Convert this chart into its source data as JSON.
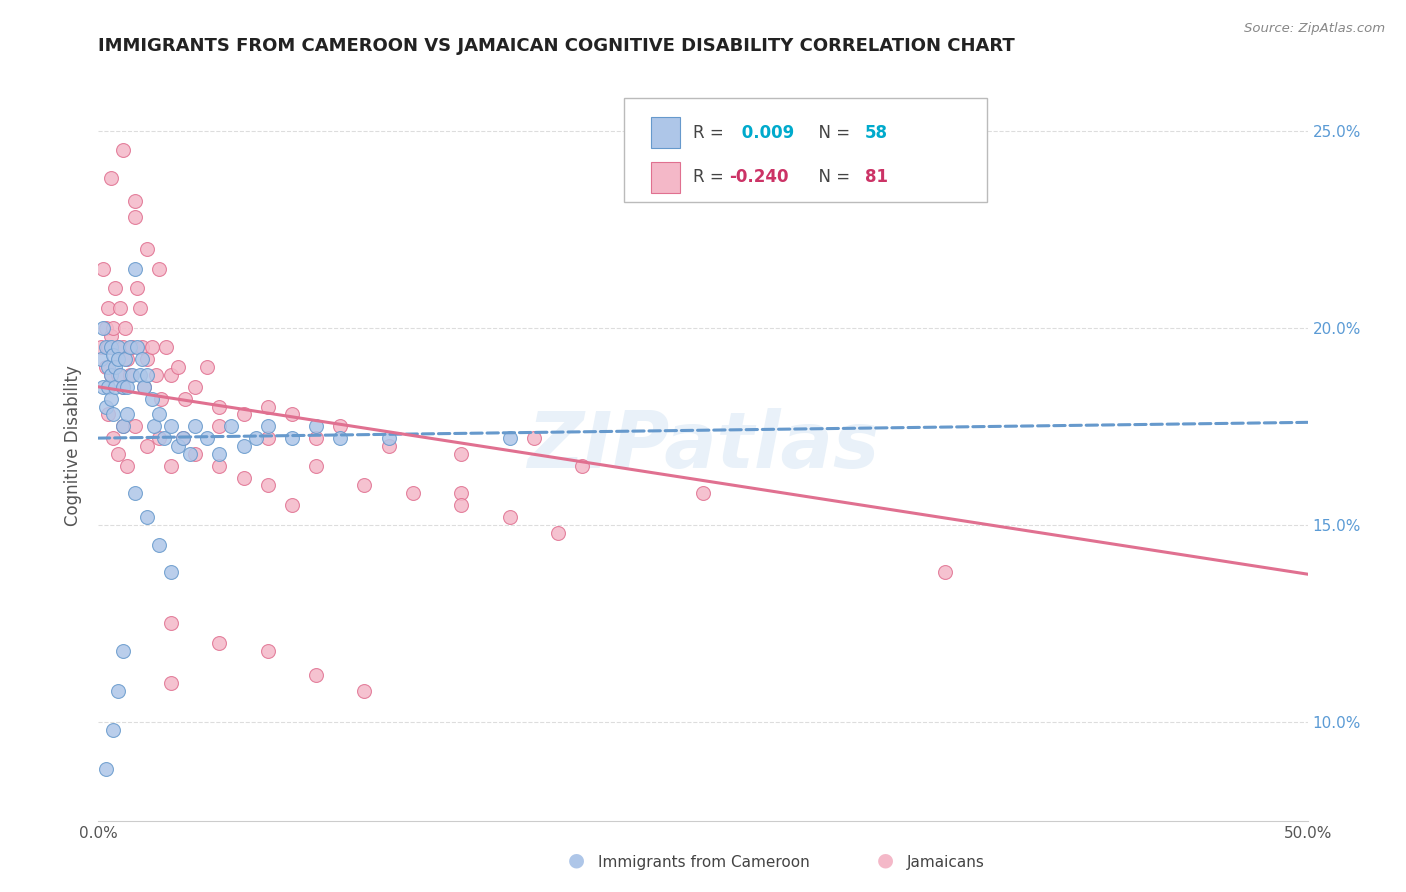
{
  "title": "IMMIGRANTS FROM CAMEROON VS JAMAICAN COGNITIVE DISABILITY CORRELATION CHART",
  "source": "Source: ZipAtlas.com",
  "ylabel": "Cognitive Disability",
  "xmin": 0.0,
  "xmax": 0.5,
  "ymin": 0.075,
  "ymax": 0.265,
  "yticks": [
    0.1,
    0.15,
    0.2,
    0.25
  ],
  "ytick_labels": [
    "10.0%",
    "15.0%",
    "20.0%",
    "25.0%"
  ],
  "color_blue": "#aec6e8",
  "color_blue_edge": "#6699cc",
  "color_pink": "#f4b8c8",
  "color_pink_edge": "#e07090",
  "trend_blue_color": "#6699cc",
  "trend_pink_color": "#e07090",
  "blue_R": 0.009,
  "pink_R": -0.24,
  "blue_N": 58,
  "pink_N": 81,
  "blue_intercept": 0.172,
  "blue_slope": 0.008,
  "pink_intercept": 0.185,
  "pink_slope": -0.095,
  "grid_color": "#dddddd",
  "right_label_color": "#5b9bd5",
  "watermark": "ZIPatlas",
  "marker_size": 100,
  "legend_color_R": "#00aacc",
  "legend_color_R2": "#cc3366",
  "blue_dots_x": [
    0.001,
    0.002,
    0.002,
    0.003,
    0.003,
    0.004,
    0.004,
    0.005,
    0.005,
    0.005,
    0.006,
    0.006,
    0.007,
    0.007,
    0.008,
    0.008,
    0.009,
    0.01,
    0.01,
    0.011,
    0.012,
    0.012,
    0.013,
    0.014,
    0.015,
    0.016,
    0.017,
    0.018,
    0.019,
    0.02,
    0.022,
    0.023,
    0.025,
    0.027,
    0.03,
    0.033,
    0.035,
    0.038,
    0.04,
    0.045,
    0.05,
    0.055,
    0.06,
    0.065,
    0.07,
    0.08,
    0.09,
    0.1,
    0.12,
    0.015,
    0.02,
    0.025,
    0.03,
    0.17,
    0.003,
    0.006,
    0.008,
    0.01
  ],
  "blue_dots_y": [
    0.192,
    0.2,
    0.185,
    0.195,
    0.18,
    0.19,
    0.185,
    0.195,
    0.188,
    0.182,
    0.193,
    0.178,
    0.19,
    0.185,
    0.195,
    0.192,
    0.188,
    0.185,
    0.175,
    0.192,
    0.185,
    0.178,
    0.195,
    0.188,
    0.215,
    0.195,
    0.188,
    0.192,
    0.185,
    0.188,
    0.182,
    0.175,
    0.178,
    0.172,
    0.175,
    0.17,
    0.172,
    0.168,
    0.175,
    0.172,
    0.168,
    0.175,
    0.17,
    0.172,
    0.175,
    0.172,
    0.175,
    0.172,
    0.172,
    0.158,
    0.152,
    0.145,
    0.138,
    0.172,
    0.088,
    0.098,
    0.108,
    0.118
  ],
  "pink_dots_x": [
    0.001,
    0.002,
    0.003,
    0.003,
    0.004,
    0.004,
    0.005,
    0.005,
    0.006,
    0.007,
    0.008,
    0.008,
    0.009,
    0.01,
    0.01,
    0.011,
    0.012,
    0.013,
    0.014,
    0.015,
    0.016,
    0.017,
    0.018,
    0.019,
    0.02,
    0.022,
    0.024,
    0.026,
    0.028,
    0.03,
    0.033,
    0.036,
    0.04,
    0.045,
    0.05,
    0.06,
    0.07,
    0.08,
    0.09,
    0.1,
    0.12,
    0.15,
    0.18,
    0.004,
    0.006,
    0.008,
    0.01,
    0.012,
    0.015,
    0.02,
    0.025,
    0.03,
    0.035,
    0.04,
    0.05,
    0.06,
    0.07,
    0.08,
    0.15,
    0.2,
    0.25,
    0.35,
    0.05,
    0.07,
    0.09,
    0.11,
    0.13,
    0.15,
    0.17,
    0.19,
    0.03,
    0.05,
    0.07,
    0.09,
    0.11,
    0.005,
    0.01,
    0.015,
    0.02,
    0.025,
    0.03
  ],
  "pink_dots_y": [
    0.195,
    0.215,
    0.2,
    0.19,
    0.205,
    0.195,
    0.198,
    0.188,
    0.2,
    0.21,
    0.195,
    0.188,
    0.205,
    0.195,
    0.185,
    0.2,
    0.192,
    0.188,
    0.195,
    0.228,
    0.21,
    0.205,
    0.195,
    0.185,
    0.192,
    0.195,
    0.188,
    0.182,
    0.195,
    0.188,
    0.19,
    0.182,
    0.185,
    0.19,
    0.18,
    0.178,
    0.18,
    0.178,
    0.172,
    0.175,
    0.17,
    0.168,
    0.172,
    0.178,
    0.172,
    0.168,
    0.175,
    0.165,
    0.175,
    0.17,
    0.172,
    0.165,
    0.172,
    0.168,
    0.165,
    0.162,
    0.16,
    0.155,
    0.158,
    0.165,
    0.158,
    0.138,
    0.175,
    0.172,
    0.165,
    0.16,
    0.158,
    0.155,
    0.152,
    0.148,
    0.125,
    0.12,
    0.118,
    0.112,
    0.108,
    0.238,
    0.245,
    0.232,
    0.22,
    0.215,
    0.11
  ]
}
